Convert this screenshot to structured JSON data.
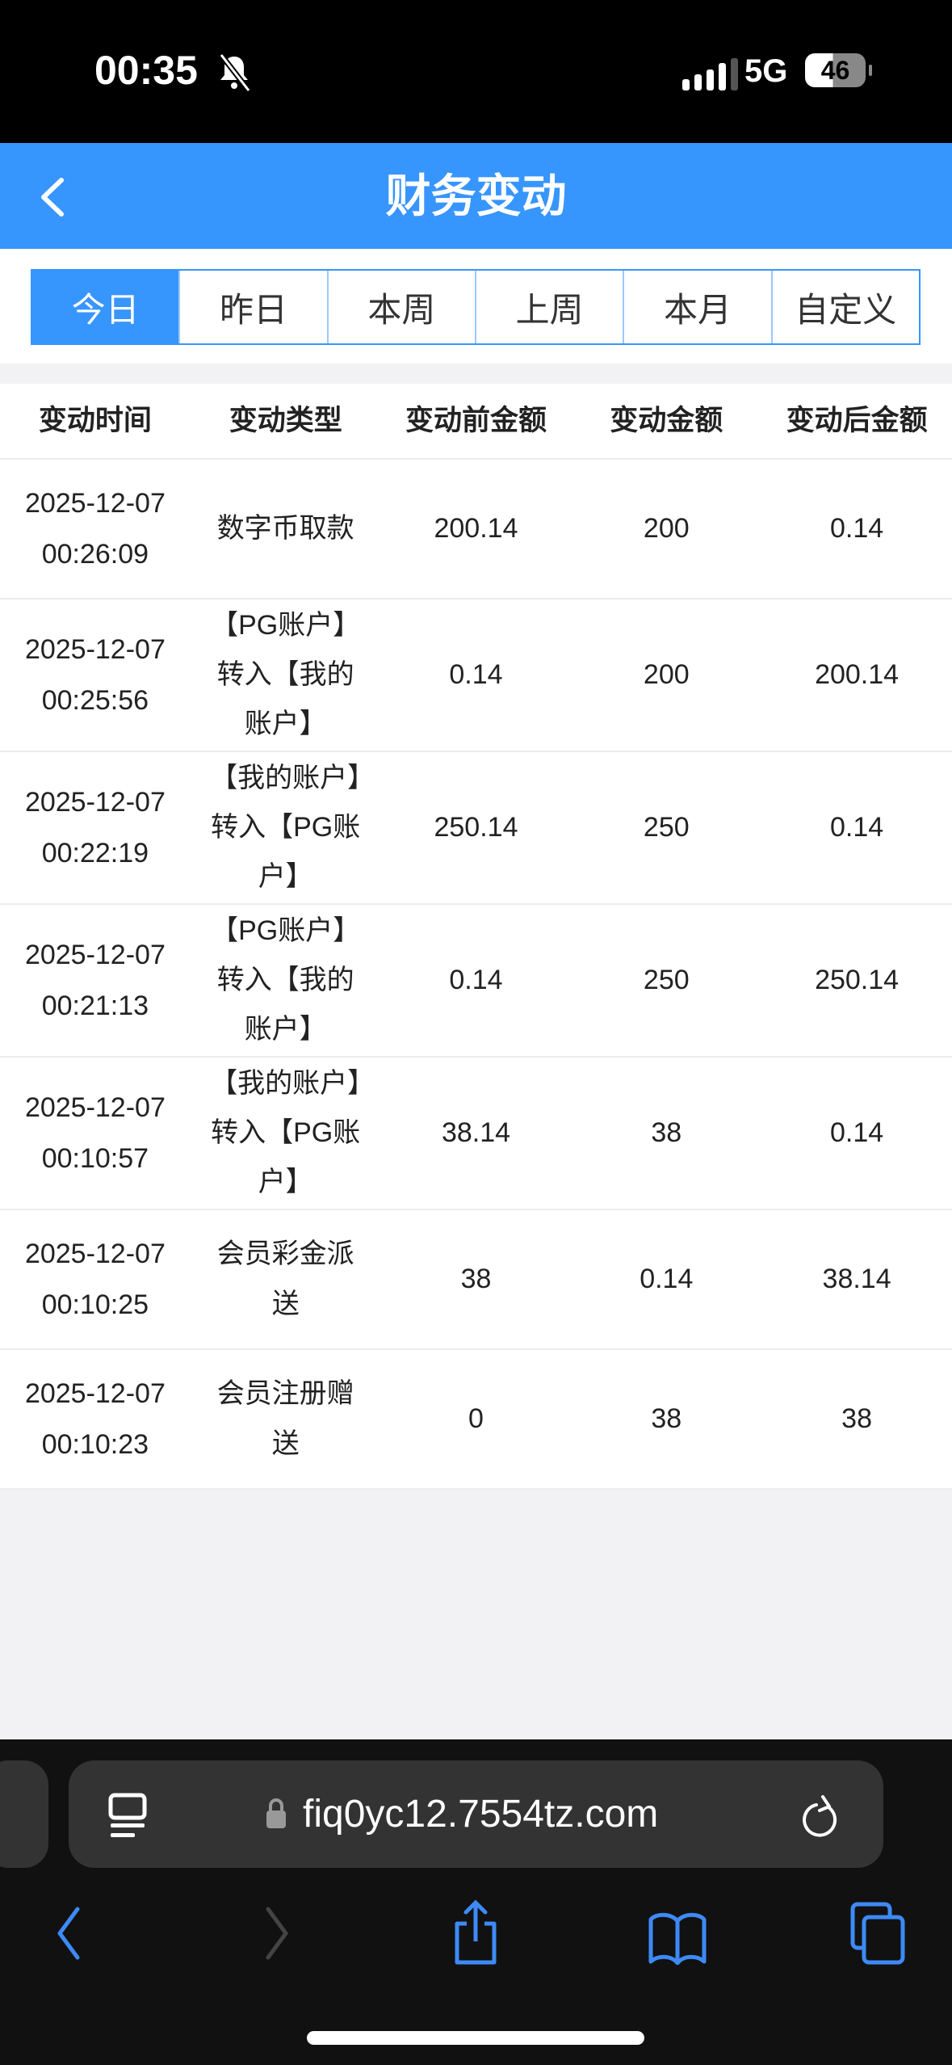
{
  "status_bar": {
    "time": "00:35",
    "network": "5G",
    "battery": "46"
  },
  "header": {
    "title": "财务变动"
  },
  "tabs": [
    {
      "label": "今日",
      "active": true
    },
    {
      "label": "昨日"
    },
    {
      "label": "本周"
    },
    {
      "label": "上周"
    },
    {
      "label": "本月"
    },
    {
      "label": "自定义"
    }
  ],
  "table": {
    "columns": [
      "变动时间",
      "变动类型",
      "变动前金额",
      "变动金额",
      "变动后金额"
    ],
    "rows": [
      {
        "date": "2025-12-07",
        "time": "00:26:09",
        "type": "数字币取款",
        "before": "200.14",
        "amount": "200",
        "after": "0.14"
      },
      {
        "date": "2025-12-07",
        "time": "00:25:56",
        "type": "【PG账户】转入【我的账户】",
        "before": "0.14",
        "amount": "200",
        "after": "200.14"
      },
      {
        "date": "2025-12-07",
        "time": "00:22:19",
        "type": "【我的账户】转入【PG账户】",
        "before": "250.14",
        "amount": "250",
        "after": "0.14"
      },
      {
        "date": "2025-12-07",
        "time": "00:21:13",
        "type": "【PG账户】转入【我的账户】",
        "before": "0.14",
        "amount": "250",
        "after": "250.14"
      },
      {
        "date": "2025-12-07",
        "time": "00:10:57",
        "type": "【我的账户】转入【PG账户】",
        "before": "38.14",
        "amount": "38",
        "after": "0.14"
      },
      {
        "date": "2025-12-07",
        "time": "00:10:25",
        "type": "会员彩金派送",
        "before": "38",
        "amount": "0.14",
        "after": "38.14"
      },
      {
        "date": "2025-12-07",
        "time": "00:10:23",
        "type": "会员注册赠送",
        "before": "0",
        "amount": "38",
        "after": "38"
      }
    ]
  },
  "browser": {
    "url": "fiq0yc12.7554tz.com",
    "accent": "#3d8af7"
  },
  "colors": {
    "primary": "#3795fe"
  }
}
